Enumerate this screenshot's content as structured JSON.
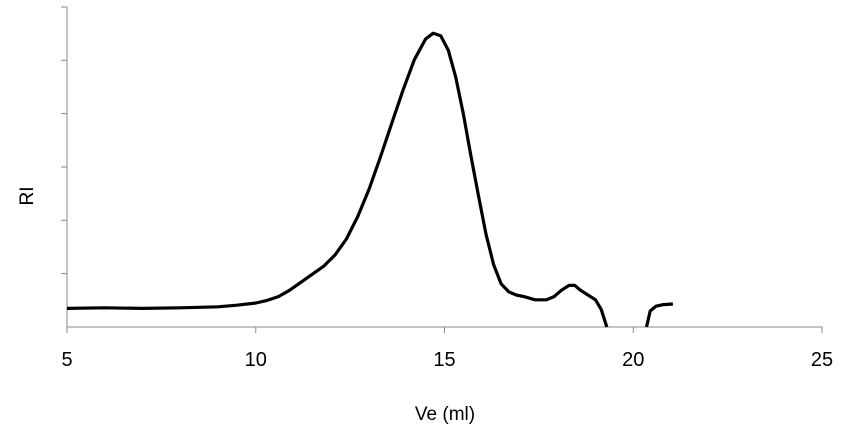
{
  "chart_data": {
    "type": "line",
    "title": "",
    "xlabel": "Ve (ml)",
    "ylabel": "RI",
    "xlim": [
      5,
      25
    ],
    "ylim": [
      0,
      1
    ],
    "x_ticks": [
      "5",
      "10",
      "15",
      "20",
      "25"
    ],
    "y_ticks_labeled": false,
    "y_tick_count": 6,
    "grid": false,
    "legend": "none",
    "line_color": "#000000",
    "series": [
      {
        "segments": [
          [
            [
              5.0,
              0.058
            ],
            [
              6.0,
              0.06
            ],
            [
              7.0,
              0.058
            ],
            [
              8.0,
              0.06
            ],
            [
              9.0,
              0.063
            ],
            [
              9.5,
              0.068
            ],
            [
              10.0,
              0.075
            ],
            [
              10.3,
              0.083
            ],
            [
              10.6,
              0.095
            ],
            [
              10.9,
              0.115
            ],
            [
              11.2,
              0.14
            ],
            [
              11.5,
              0.165
            ],
            [
              11.8,
              0.19
            ],
            [
              12.1,
              0.225
            ],
            [
              12.4,
              0.275
            ],
            [
              12.7,
              0.345
            ],
            [
              13.0,
              0.43
            ],
            [
              13.3,
              0.53
            ],
            [
              13.6,
              0.635
            ],
            [
              13.9,
              0.74
            ],
            [
              14.2,
              0.835
            ],
            [
              14.5,
              0.9
            ],
            [
              14.7,
              0.918
            ],
            [
              14.9,
              0.91
            ],
            [
              15.1,
              0.865
            ],
            [
              15.3,
              0.78
            ],
            [
              15.5,
              0.665
            ],
            [
              15.7,
              0.535
            ],
            [
              15.9,
              0.41
            ],
            [
              16.1,
              0.29
            ],
            [
              16.3,
              0.195
            ],
            [
              16.5,
              0.135
            ],
            [
              16.7,
              0.11
            ],
            [
              16.9,
              0.1
            ],
            [
              17.1,
              0.095
            ],
            [
              17.4,
              0.085
            ],
            [
              17.7,
              0.085
            ],
            [
              17.9,
              0.095
            ],
            [
              18.1,
              0.115
            ],
            [
              18.3,
              0.13
            ],
            [
              18.45,
              0.13
            ],
            [
              18.6,
              0.115
            ],
            [
              18.8,
              0.1
            ],
            [
              19.0,
              0.085
            ],
            [
              19.15,
              0.055
            ],
            [
              19.3,
              0.0
            ]
          ],
          [
            [
              20.35,
              0.0
            ],
            [
              20.45,
              0.05
            ],
            [
              20.6,
              0.065
            ],
            [
              20.8,
              0.07
            ],
            [
              21.05,
              0.072
            ]
          ]
        ]
      }
    ]
  }
}
